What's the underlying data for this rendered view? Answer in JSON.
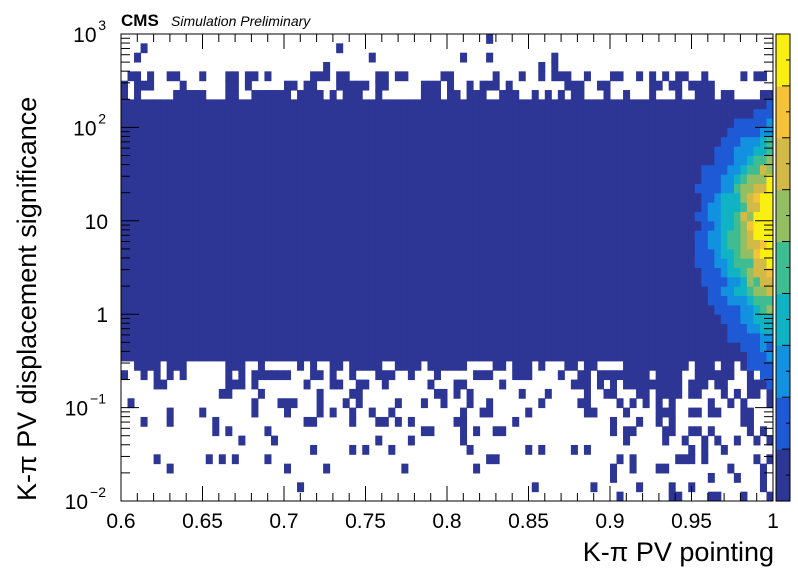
{
  "chart_data": {
    "type": "heatmap",
    "experiment_label": "CMS",
    "status_label": "Simulation Preliminary",
    "xlabel": "K-π PV pointing",
    "ylabel": "K-π PV displacement significance",
    "xlim": [
      0.6,
      1.0
    ],
    "ylim": [
      0.01,
      1000
    ],
    "yscale": "log",
    "x_tick_labels": [
      "0.6",
      "0.65",
      "0.7",
      "0.75",
      "0.8",
      "0.85",
      "0.9",
      "0.95",
      "1"
    ],
    "x_ticks": [
      0.6,
      0.65,
      0.7,
      0.75,
      0.8,
      0.85,
      0.9,
      0.95,
      1.0
    ],
    "y_ticks": [
      {
        "value": 0.01,
        "mantissa": "10",
        "exp": "−2"
      },
      {
        "value": 0.1,
        "mantissa": "10",
        "exp": "−1"
      },
      {
        "value": 1,
        "mantissa": "1",
        "exp": ""
      },
      {
        "value": 10,
        "mantissa": "10",
        "exp": ""
      },
      {
        "value": 100,
        "mantissa": "10",
        "exp": "2"
      },
      {
        "value": 1000,
        "mantissa": "10",
        "exp": "3"
      }
    ],
    "grid": false,
    "colorbar": true,
    "palette": [
      "#2d3595",
      "#1f5ad6",
      "#1191df",
      "#10b3c4",
      "#3fbd92",
      "#93bf62",
      "#d3ba46",
      "#f5c23a",
      "#f9f011"
    ],
    "bins": {
      "nx": 100,
      "ny": 50
    },
    "dense_band": {
      "y_min": 0.3,
      "y_max": 200
    },
    "peak_region": {
      "x": 0.995,
      "y": 10
    }
  }
}
